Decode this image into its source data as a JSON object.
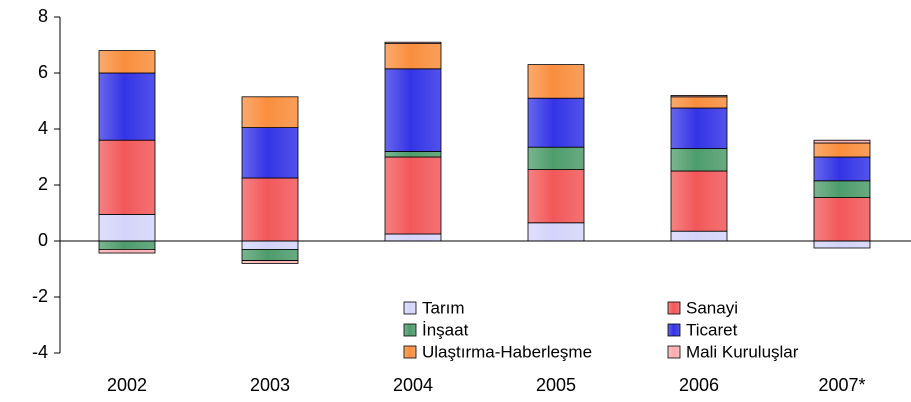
{
  "chart_data": {
    "type": "stacked_bar",
    "categories": [
      "2002",
      "2003",
      "2004",
      "2005",
      "2006",
      "2007*"
    ],
    "series": [
      {
        "name": "Tarım",
        "color": "#d4d4fa",
        "values": [
          0.95,
          -0.3,
          0.25,
          0.65,
          0.35,
          -0.25
        ]
      },
      {
        "name": "Sanayi",
        "color": "#f2585a",
        "values": [
          2.65,
          2.25,
          2.75,
          1.9,
          2.15,
          1.55
        ]
      },
      {
        "name": "İnşaat",
        "color": "#4e9c6c",
        "values": [
          -0.3,
          -0.4,
          0.2,
          0.8,
          0.8,
          0.6
        ]
      },
      {
        "name": "Ticaret",
        "color": "#3434e6",
        "values": [
          2.4,
          1.8,
          2.95,
          1.75,
          1.45,
          0.85
        ]
      },
      {
        "name": "Ulaştırma-Haberleşme",
        "color": "#f98e3e",
        "values": [
          0.8,
          1.1,
          0.9,
          1.2,
          0.4,
          0.5
        ]
      },
      {
        "name": "Mali Kuruluşlar",
        "color": "#f8aeb0",
        "values": [
          -0.13,
          -0.1,
          0.05,
          0,
          0.05,
          0.1
        ]
      }
    ],
    "ylim": [
      -4,
      8
    ],
    "yticks": [
      -4,
      -2,
      0,
      2,
      4,
      6,
      8
    ]
  }
}
